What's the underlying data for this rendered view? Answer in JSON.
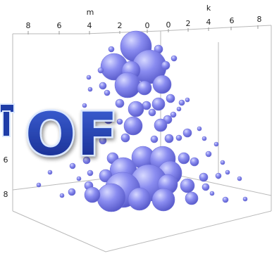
{
  "chart_data": {
    "type": "scatter",
    "subtype": "3d-bubble",
    "title": "",
    "overlay_text": "OF",
    "axes": {
      "m": {
        "label": "m",
        "ticks": [
          "8",
          "6",
          "4",
          "2",
          "0"
        ]
      },
      "k": {
        "label": "k",
        "ticks": [
          "0",
          "2",
          "4",
          "6",
          "8"
        ]
      },
      "left": {
        "ticks": [
          "6",
          "8"
        ]
      }
    },
    "grid": false,
    "colors": {
      "bubble": "#8a8cf0",
      "bubble_light": "#d6d8ff",
      "bubble_dark": "#5557c8",
      "box_line": "#b9b9b9",
      "overlay_fill": "#1f3da8",
      "overlay_stroke": "#dbe8ff"
    }
  }
}
